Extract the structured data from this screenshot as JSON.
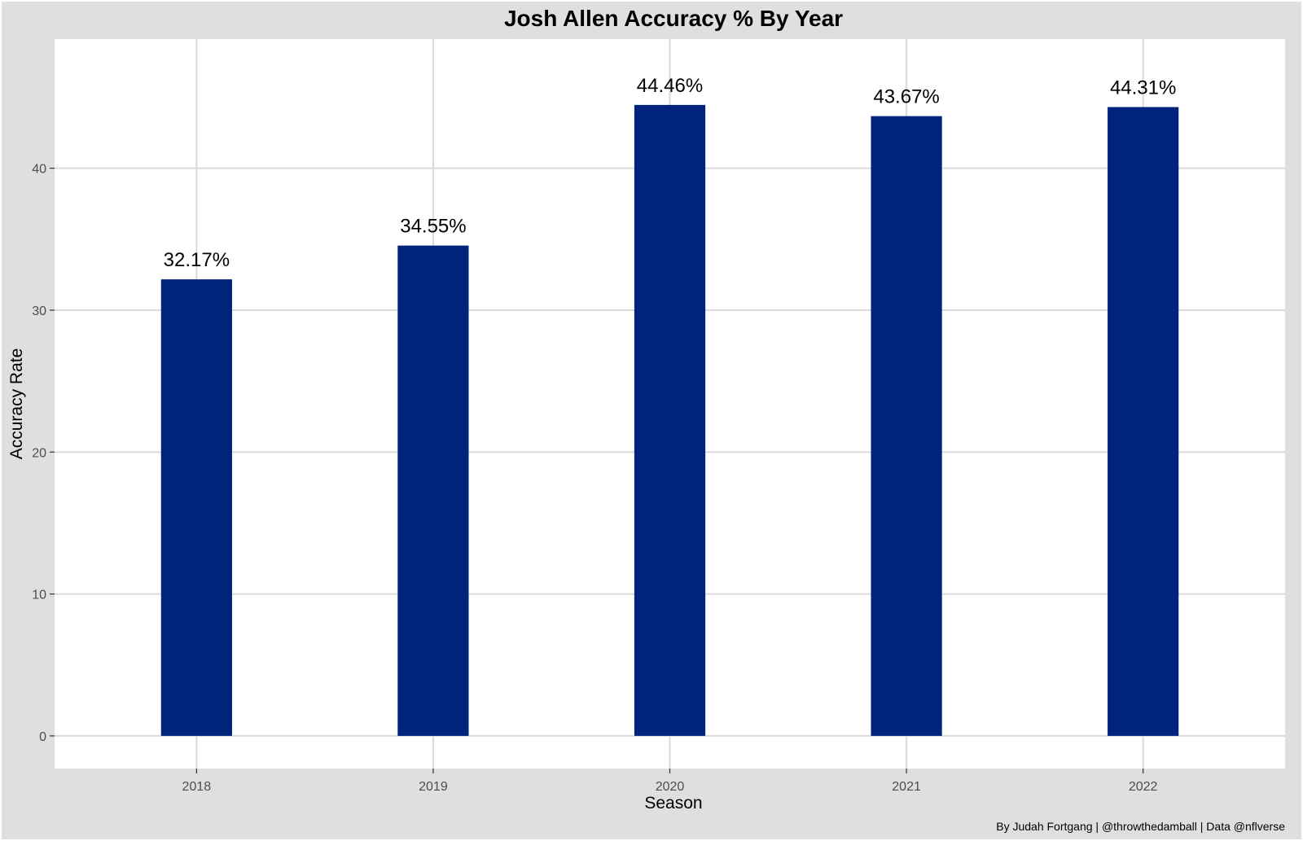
{
  "chart_data": {
    "type": "bar",
    "title": "Josh Allen Accuracy % By Year",
    "xlabel": "Season",
    "ylabel": "Accuracy Rate",
    "categories": [
      "2018",
      "2019",
      "2020",
      "2021",
      "2022"
    ],
    "values": [
      32.17,
      34.55,
      44.46,
      43.67,
      44.31
    ],
    "data_labels": [
      "32.17%",
      "34.55%",
      "44.46%",
      "43.67%",
      "44.31%"
    ],
    "yticks": [
      0,
      10,
      20,
      30,
      40
    ],
    "ylim": [
      -2.3,
      49.1
    ],
    "grid": true,
    "legend": "none",
    "caption": "By Judah Fortgang | @throwthedamball | Data @nflverse",
    "colors": {
      "bar": "#00237C",
      "panel_background": "#FFFFFF",
      "plot_background": "#DFDFDF",
      "grid": "#DADADA",
      "text": "#000000",
      "tick_text": "#4D4D4D"
    }
  }
}
